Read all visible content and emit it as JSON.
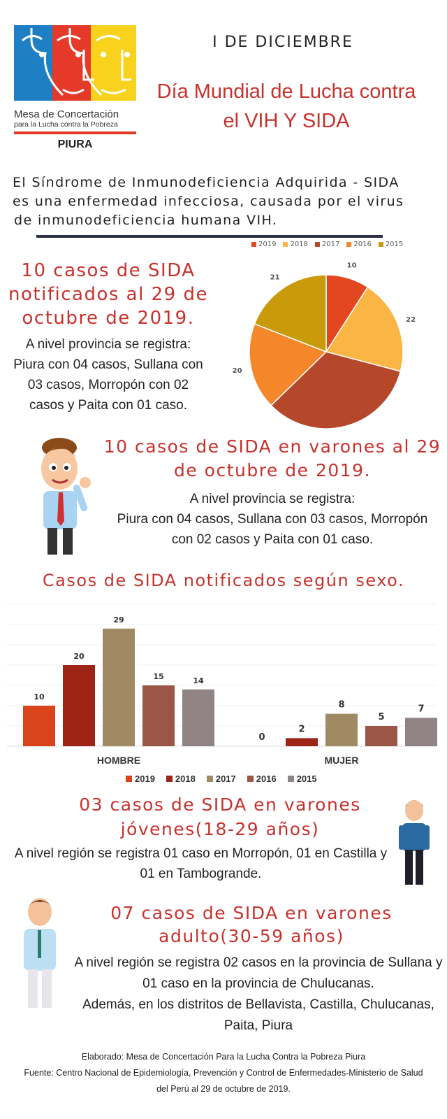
{
  "logo": {
    "org_line1": "Mesa de Concertación",
    "org_line2": "para la Lucha contra la Pobreza",
    "region": "PIURA",
    "colors": [
      "#1f7fc4",
      "#e53a2a",
      "#f8d21c"
    ]
  },
  "header": {
    "date": "I DE DICIEMBRE",
    "title_lines": [
      "Día Mundial  de Lucha contra",
      "el VIH Y SIDA"
    ]
  },
  "intro": {
    "lines": [
      "El Síndrome de Inmunodeficiencia Adquirida - SIDA",
      "es una enfermedad infecciosa, causada por el virus",
      "de inmunodeficiencia humana VIH."
    ]
  },
  "section1": {
    "title_lines": [
      "10 casos de SIDA",
      "notificados al 29 de",
      "octubre de 2019."
    ],
    "body_lines": [
      "A nivel provincia se registra:",
      "Piura con 04 casos, Sullana con",
      "03 casos, Morropón con 02",
      "casos y Paita con 01 caso."
    ]
  },
  "section2": {
    "title_lines": [
      "10 casos de SIDA en varones al 29",
      "de octubre de 2019."
    ],
    "body_lines": [
      "A nivel provincia se registra:",
      "Piura con 04 casos, Sullana con 03 casos, Morropón",
      "con 02 casos y Paita con 01 caso."
    ]
  },
  "bar_section_title": "Casos de SIDA notificados según sexo.",
  "section3": {
    "title_lines": [
      "03 casos de SIDA en varones",
      "jóvenes(18-29 años)"
    ],
    "body_lines": [
      "A nivel región se registra 01 caso en Morropón, 01 en Castilla y",
      "01 en Tambogrande."
    ]
  },
  "section4": {
    "title_lines": [
      "07 casos de SIDA en varones",
      "adulto(30-59 años)"
    ],
    "body_lines": [
      "A nivel región se registra 02 casos en la provincia de Sullana y",
      "01 caso en la provincia de Chulucanas.",
      "Además, en los distritos de Bellavista, Castilla, Chulucanas,",
      "Paita, Piura"
    ]
  },
  "footer": {
    "lines": [
      "Elaborado: Mesa de Concertación Para la Lucha Contra la Pobreza Piura",
      "Fuente: Centro Nacional de Epidemiología, Prevención y Control de Enfermedades-Ministerio de Salud",
      "del Perú al 29 de octubre de 2019."
    ]
  },
  "chart_data": [
    {
      "type": "pie",
      "title": "",
      "legend": "top",
      "categories": [
        "2019",
        "2018",
        "2017",
        "2016",
        "2015"
      ],
      "values": [
        10,
        22,
        37,
        20,
        21
      ],
      "colors": [
        "#e3471f",
        "#fbb544",
        "#b5482a",
        "#f5862a",
        "#c99a0a"
      ]
    },
    {
      "type": "bar",
      "title": "Casos de SIDA notificados según sexo.",
      "xlabel": "",
      "ylabel": "",
      "ylim": [
        0,
        35
      ],
      "grid": true,
      "legend": "bottom",
      "categories": [
        "HOMBRE",
        "MUJER"
      ],
      "series": [
        {
          "name": "2019",
          "values": [
            10,
            0
          ],
          "color": "#d9441a"
        },
        {
          "name": "2018",
          "values": [
            20,
            2
          ],
          "color": "#9e2418"
        },
        {
          "name": "2017",
          "values": [
            29,
            8
          ],
          "color": "#a08a63"
        },
        {
          "name": "2016",
          "values": [
            15,
            5
          ],
          "color": "#9a5646"
        },
        {
          "name": "2015",
          "values": [
            14,
            7
          ],
          "color": "#8f8384"
        }
      ]
    }
  ]
}
